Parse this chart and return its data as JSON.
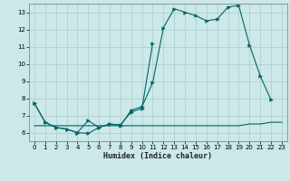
{
  "xlabel": "Humidex (Indice chaleur)",
  "xlim": [
    -0.5,
    23.5
  ],
  "ylim": [
    5.5,
    13.5
  ],
  "yticks": [
    6,
    7,
    8,
    9,
    10,
    11,
    12,
    13
  ],
  "xticks": [
    0,
    1,
    2,
    3,
    4,
    5,
    6,
    7,
    8,
    9,
    10,
    11,
    12,
    13,
    14,
    15,
    16,
    17,
    18,
    19,
    20,
    21,
    22,
    23
  ],
  "bg_color": "#cce8e8",
  "grid_color": "#aacccc",
  "line_color": "#006666",
  "line1_x": [
    0,
    1,
    2,
    3,
    4,
    5,
    6,
    7,
    8,
    9,
    10,
    11,
    12,
    13,
    14,
    15,
    16,
    17,
    18,
    19,
    20,
    21,
    22
  ],
  "line1_y": [
    7.7,
    6.6,
    6.3,
    6.2,
    6.0,
    6.7,
    6.3,
    6.5,
    6.4,
    7.3,
    7.5,
    8.9,
    12.1,
    13.2,
    13.0,
    12.8,
    12.5,
    12.6,
    13.3,
    13.4,
    11.1,
    9.3,
    7.9
  ],
  "line2_x": [
    0,
    1,
    2,
    3,
    4,
    5,
    6,
    7,
    8,
    9,
    10,
    11
  ],
  "line2_y": [
    7.7,
    6.6,
    6.3,
    6.2,
    6.0,
    5.95,
    6.3,
    6.5,
    6.45,
    7.2,
    7.4,
    11.2
  ],
  "line3_x": [
    0,
    1,
    2,
    3,
    4,
    5,
    6,
    7,
    8,
    9,
    10,
    11,
    12,
    13,
    14,
    15,
    16,
    17,
    18,
    19,
    20,
    21,
    22,
    23
  ],
  "line3_y": [
    6.4,
    6.4,
    6.4,
    6.4,
    6.4,
    6.4,
    6.4,
    6.4,
    6.4,
    6.4,
    6.4,
    6.4,
    6.4,
    6.4,
    6.4,
    6.4,
    6.4,
    6.4,
    6.4,
    6.4,
    6.5,
    6.5,
    6.6,
    6.6
  ]
}
